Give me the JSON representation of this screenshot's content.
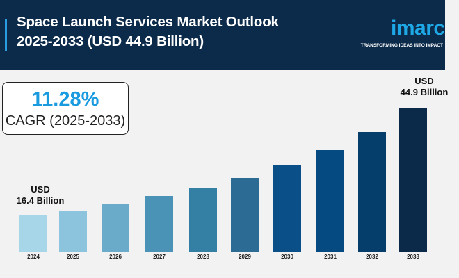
{
  "header": {
    "title_line1": "Space Launch Services Market Outlook",
    "title_line2": "2025-2033 (USD 44.9 Billion)",
    "logo": "imarc",
    "tagline": "TRANSFORMING IDEAS INTO IMPACT"
  },
  "cagr": {
    "value": "11.28%",
    "label": "CAGR (2025-2033)"
  },
  "chart_data": {
    "type": "bar",
    "categories": [
      "2024",
      "2025",
      "2026",
      "2027",
      "2028",
      "2029",
      "2030",
      "2031",
      "2032",
      "2033"
    ],
    "values": [
      16.4,
      17.7,
      19.5,
      21.5,
      23.8,
      26.3,
      29.8,
      33.7,
      38.5,
      44.9
    ],
    "unit": "USD Billion",
    "annotations": [
      {
        "category": "2024",
        "line1": "USD",
        "line2": "16.4 Billion"
      },
      {
        "category": "2033",
        "line1": "USD",
        "line2": "44.9 Billion"
      }
    ],
    "colors": [
      "#a8d6e9",
      "#8cc4de",
      "#6aabc9",
      "#4b93b6",
      "#347fa4",
      "#2b6b94",
      "#0b4f88",
      "#064a82",
      "#053e6b",
      "#0b2a4a"
    ],
    "grid": false
  }
}
